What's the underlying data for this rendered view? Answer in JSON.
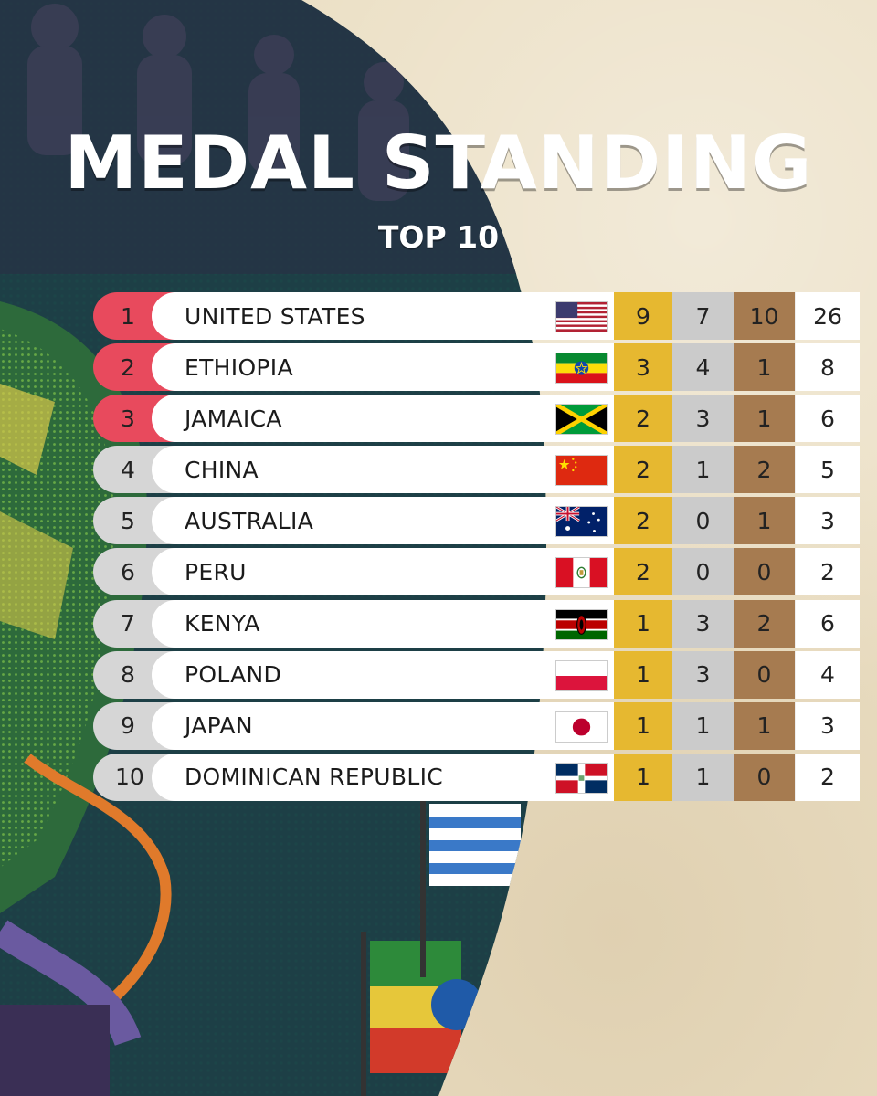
{
  "header": {
    "title": "MEDAL STANDING",
    "subtitle": "TOP 10"
  },
  "standings": [
    {
      "rank": "1",
      "country": "UNITED STATES",
      "flag": "us-flag",
      "gold": "9",
      "silver": "7",
      "bronze": "10",
      "total": "26"
    },
    {
      "rank": "2",
      "country": "ETHIOPIA",
      "flag": "ethiopia-flag",
      "gold": "3",
      "silver": "4",
      "bronze": "1",
      "total": "8"
    },
    {
      "rank": "3",
      "country": "JAMAICA",
      "flag": "jamaica-flag",
      "gold": "2",
      "silver": "3",
      "bronze": "1",
      "total": "6"
    },
    {
      "rank": "4",
      "country": "CHINA",
      "flag": "china-flag",
      "gold": "2",
      "silver": "1",
      "bronze": "2",
      "total": "5"
    },
    {
      "rank": "5",
      "country": "AUSTRALIA",
      "flag": "australia-flag",
      "gold": "2",
      "silver": "0",
      "bronze": "1",
      "total": "3"
    },
    {
      "rank": "6",
      "country": "PERU",
      "flag": "peru-flag",
      "gold": "2",
      "silver": "0",
      "bronze": "0",
      "total": "2"
    },
    {
      "rank": "7",
      "country": "KENYA",
      "flag": "kenya-flag",
      "gold": "1",
      "silver": "3",
      "bronze": "2",
      "total": "6"
    },
    {
      "rank": "8",
      "country": "POLAND",
      "flag": "poland-flag",
      "gold": "1",
      "silver": "3",
      "bronze": "0",
      "total": "4"
    },
    {
      "rank": "9",
      "country": "JAPAN",
      "flag": "japan-flag",
      "gold": "1",
      "silver": "1",
      "bronze": "1",
      "total": "3"
    },
    {
      "rank": "10",
      "country": "DOMINICAN REPUBLIC",
      "flag": "dominican-republic-flag",
      "gold": "1",
      "silver": "1",
      "bronze": "0",
      "total": "2"
    }
  ],
  "colors": {
    "top_rank": "#e84a5d",
    "other_rank": "#d6d6d6",
    "gold": "#e6b830",
    "silver": "#cbcbcb",
    "bronze": "#a67b50",
    "paper": "#ebdfc4"
  }
}
